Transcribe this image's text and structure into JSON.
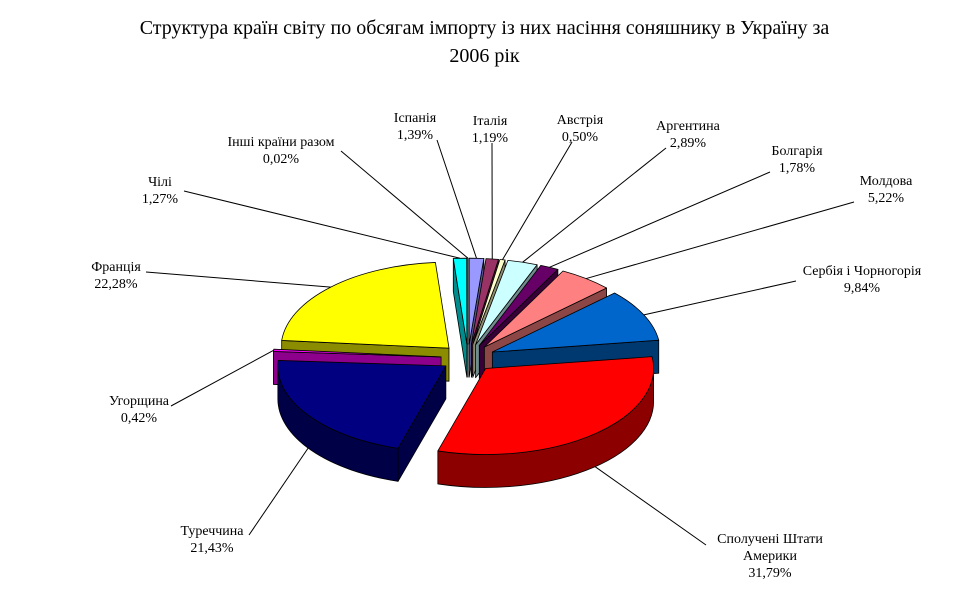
{
  "page": {
    "background": "#FFFFFF"
  },
  "chart_data": {
    "type": "pie",
    "style": "3d-exploded",
    "title": "Структура країн світу по обсягам імпорту із них насіння соняшнику в Україну за 2006 рік",
    "title_lines": [
      "Структура країн світу по обсягам імпорту із них насіння соняшнику в Україну за",
      "2006 рік"
    ],
    "unit": "percent",
    "start_angle_deg": 0,
    "direction": "clockwise",
    "legend": "none",
    "slices": [
      {
        "name": "Іспанія",
        "value": 1.39,
        "display": "1,39%",
        "color": "#9999FF"
      },
      {
        "name": "Італія",
        "value": 1.19,
        "display": "1,19%",
        "color": "#993366"
      },
      {
        "name": "Австрія",
        "value": 0.5,
        "display": "0,50%",
        "color": "#FFFFCC"
      },
      {
        "name": "Аргентина",
        "value": 2.89,
        "display": "2,89%",
        "color": "#CCFFFF"
      },
      {
        "name": "Болгарія",
        "value": 1.78,
        "display": "1,78%",
        "color": "#660066"
      },
      {
        "name": "Молдова",
        "value": 5.22,
        "display": "5,22%",
        "color": "#FF8080"
      },
      {
        "name": "Сербія і Чорногорія",
        "value": 9.84,
        "display": "9,84%",
        "color": "#0066CC"
      },
      {
        "name": "Сполучені Штати Америки",
        "name_lines": [
          "Сполучені Штати",
          "Америки"
        ],
        "value": 31.79,
        "display": "31,79%",
        "color": "#FF0000"
      },
      {
        "name": "Туреччина",
        "value": 21.43,
        "display": "21,43%",
        "color": "#000080"
      },
      {
        "name": "Угорщина",
        "value": 0.42,
        "display": "0,42%",
        "color": "#FF00FF"
      },
      {
        "name": "Франція",
        "value": 22.28,
        "display": "22,28%",
        "color": "#FFFF00"
      },
      {
        "name": "Чілі",
        "value": 1.27,
        "display": "1,27%",
        "color": "#00FFFF"
      },
      {
        "name": "Інші країни разом",
        "value": 0.02,
        "display": "0,02%",
        "color": "#800080"
      }
    ]
  }
}
